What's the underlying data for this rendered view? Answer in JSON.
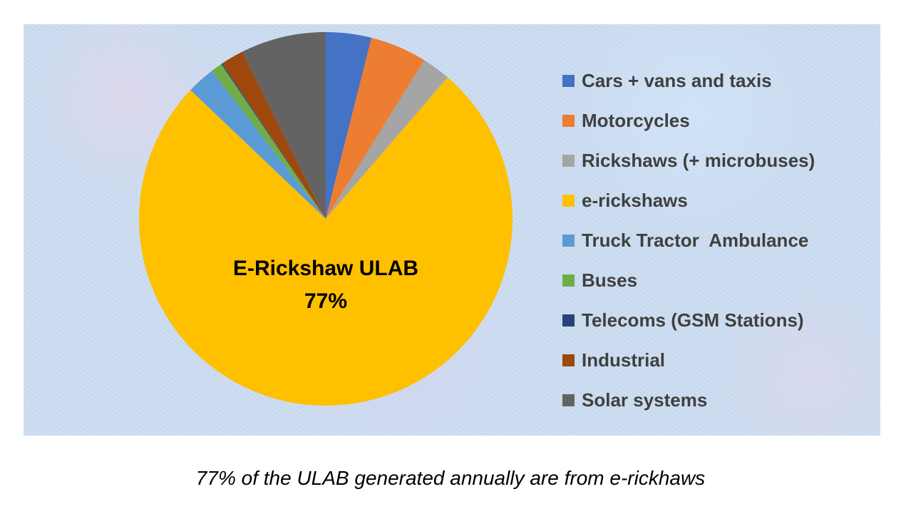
{
  "chart_data": {
    "type": "pie",
    "title": "",
    "start_angle_deg": 0,
    "direction": "clockwise",
    "legend_position": "right",
    "series": [
      {
        "name": "Cars + vans and taxis",
        "value": 4,
        "color": "#4472c4"
      },
      {
        "name": "Motorcycles",
        "value": 5,
        "color": "#ed7d31"
      },
      {
        "name": "Rickshaws (+ microbuses)",
        "value": 2.5,
        "color": "#a5a5a5"
      },
      {
        "name": "e-rickshaws",
        "value": 77,
        "color": "#ffc000"
      },
      {
        "name": "Truck Tractor  Ambulance",
        "value": 2.5,
        "color": "#5b9bd5"
      },
      {
        "name": "Buses",
        "value": 1,
        "color": "#70ad47"
      },
      {
        "name": "Telecoms (GSM Stations)",
        "value": 0.1,
        "color": "#264478"
      },
      {
        "name": "Industrial",
        "value": 2,
        "color": "#9e480e"
      },
      {
        "name": "Solar systems",
        "value": 7.5,
        "color": "#636363"
      }
    ],
    "annotation": {
      "line1": "E-Rickshaw ULAB",
      "line2": "77%"
    }
  },
  "caption": "77% of the ULAB generated annually are from e-rickhaws"
}
